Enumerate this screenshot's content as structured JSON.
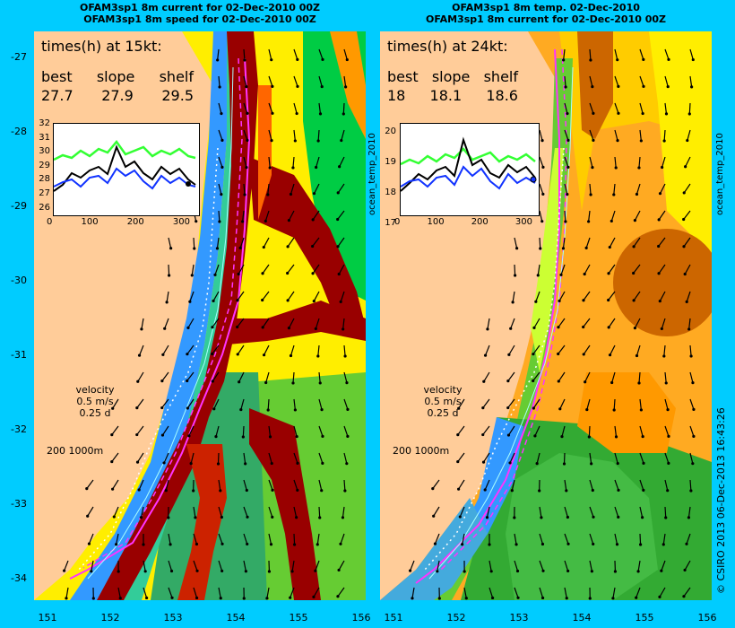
{
  "panels": [
    {
      "title_line1": "OFAM3sp1 8m current for 02-Dec-2010 00Z",
      "title_line2": "OFAM3sp1 8m speed for 02-Dec-2010 00Z",
      "times_title": "times(h) at 15kt:",
      "times_heads": [
        "best",
        "slope",
        "shelf"
      ],
      "times_vals": [
        "27.7",
        "27.9",
        "29.5"
      ],
      "inset_yticks": [
        "32",
        "31",
        "30",
        "29",
        "28",
        "27",
        "26"
      ],
      "inset_xticks": [
        "0",
        "100",
        "200",
        "300"
      ],
      "inset_side_label": "ocean_temp_2010"
    },
    {
      "title_line1": "OFAM3sp1 8m temp. 02-Dec-2010",
      "title_line2": "OFAM3sp1 8m current for 02-Dec-2010 00Z",
      "times_title": "times(h) at 24kt:",
      "times_heads": [
        "best",
        "slope",
        "shelf"
      ],
      "times_vals": [
        "18",
        "18.1",
        "18.6"
      ],
      "inset_yticks": [
        "20",
        "19",
        "18",
        "17"
      ],
      "inset_xticks": [
        "0",
        "100",
        "200",
        "300"
      ],
      "inset_side_label": "ocean_temp_2010"
    }
  ],
  "velocity_legend": {
    "line1": "velocity",
    "line2": "0.5 m/s",
    "line3": "0.25 d"
  },
  "isobath_legend": "200  1000m",
  "yticks": [
    "-27",
    "-28",
    "-29",
    "-30",
    "-31",
    "-32",
    "-33",
    "-34"
  ],
  "xticks": [
    "151",
    "152",
    "153",
    "154",
    "155",
    "156"
  ],
  "credit": "© CSIRO 2013   06-Dec-2013 16:43:26",
  "colors": {
    "background": "#00ccff",
    "land": "#ffcc99",
    "route_magenta": "#ff33ff",
    "high_speed": "#990000",
    "blue": "#3399ff",
    "green": "#33cc33",
    "yellow": "#ffff00",
    "orange": "#ff9900"
  }
}
